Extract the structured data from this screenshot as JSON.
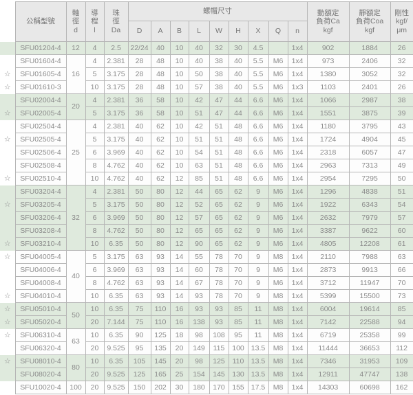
{
  "colors": {
    "header_bg": "#e8e8e8",
    "highlight_row_bg": "#dfeadd",
    "row_bg": "#fdfdfd",
    "border": "#b5b5b5",
    "text": "#8b8b8b"
  },
  "icons": {
    "star": "☆"
  },
  "table": {
    "headers": {
      "model": "公稱型號",
      "shaft_dia": "軸\n徑\nd",
      "lead": "導\n程\nl",
      "ball_dia": "珠\n徑\nDa",
      "nut_group": "螺帽尺寸",
      "nut_cols": [
        "D",
        "A",
        "B",
        "L",
        "W",
        "H",
        "X",
        "Q",
        "n"
      ],
      "dynamic_load": "動額定\n負荷Ca\nkgf",
      "static_load": "靜額定\n負荷Coa\nkgf",
      "rigidity": "剛性\nkgf/\nμm"
    },
    "rows": [
      {
        "star": false,
        "highlight": true,
        "model": "SFU01204-4",
        "d": {
          "value": "12",
          "span": 1
        },
        "cells": [
          "4",
          "2.5",
          "22/24",
          "40",
          "10",
          "40",
          "32",
          "30",
          "4.5",
          "",
          "1x4",
          "902",
          "1884",
          "26"
        ]
      },
      {
        "star": false,
        "highlight": false,
        "model": "SFU01604-4",
        "d": {
          "value": "16",
          "span": 3
        },
        "cells": [
          "4",
          "2.381",
          "28",
          "48",
          "10",
          "40",
          "38",
          "40",
          "5.5",
          "M6",
          "1x4",
          "973",
          "2406",
          "32"
        ]
      },
      {
        "star": true,
        "highlight": false,
        "model": "SFU01605-4",
        "d": null,
        "cells": [
          "5",
          "3.175",
          "28",
          "48",
          "10",
          "50",
          "38",
          "40",
          "5.5",
          "M6",
          "1x4",
          "1380",
          "3052",
          "32"
        ]
      },
      {
        "star": true,
        "highlight": false,
        "model": "SFU01610-3",
        "d": null,
        "cells": [
          "10",
          "3.175",
          "28",
          "48",
          "10",
          "57",
          "38",
          "40",
          "5.5",
          "M6",
          "1x3",
          "1103",
          "2401",
          "26"
        ]
      },
      {
        "star": false,
        "highlight": true,
        "model": "SFU02004-4",
        "d": {
          "value": "20",
          "span": 2
        },
        "cells": [
          "4",
          "2.381",
          "36",
          "58",
          "10",
          "42",
          "47",
          "44",
          "6.6",
          "M6",
          "1x4",
          "1066",
          "2987",
          "38"
        ]
      },
      {
        "star": true,
        "highlight": true,
        "model": "SFU02005-4",
        "d": null,
        "cells": [
          "5",
          "3.175",
          "36",
          "58",
          "10",
          "51",
          "47",
          "44",
          "6.6",
          "M6",
          "1x4",
          "1551",
          "3875",
          "39"
        ]
      },
      {
        "star": false,
        "highlight": false,
        "model": "SFU02504-4",
        "d": {
          "value": "25",
          "span": 5
        },
        "cells": [
          "4",
          "2.381",
          "40",
          "62",
          "10",
          "42",
          "51",
          "48",
          "6.6",
          "M6",
          "1x4",
          "1180",
          "3795",
          "43"
        ]
      },
      {
        "star": true,
        "highlight": false,
        "model": "SFU02505-4",
        "d": null,
        "cells": [
          "5",
          "3.175",
          "40",
          "62",
          "10",
          "51",
          "51",
          "48",
          "6.6",
          "M6",
          "1x4",
          "1724",
          "4904",
          "45"
        ]
      },
      {
        "star": false,
        "highlight": false,
        "model": "SFU02506-4",
        "d": null,
        "cells": [
          "6",
          "3.969",
          "40",
          "62",
          "10",
          "54",
          "51",
          "48",
          "6.6",
          "M6",
          "1x4",
          "2318",
          "6057",
          "47"
        ]
      },
      {
        "star": false,
        "highlight": false,
        "model": "SFU02508-4",
        "d": null,
        "cells": [
          "8",
          "4.762",
          "40",
          "62",
          "10",
          "63",
          "51",
          "48",
          "6.6",
          "M6",
          "1x4",
          "2963",
          "7313",
          "49"
        ]
      },
      {
        "star": true,
        "highlight": false,
        "model": "SFU02510-4",
        "d": null,
        "cells": [
          "10",
          "4.762",
          "40",
          "62",
          "12",
          "85",
          "51",
          "48",
          "6.6",
          "M6",
          "1x4",
          "2954",
          "7295",
          "50"
        ]
      },
      {
        "star": false,
        "highlight": true,
        "model": "SFU03204-4",
        "d": {
          "value": "32",
          "span": 5
        },
        "cells": [
          "4",
          "2.381",
          "50",
          "80",
          "12",
          "44",
          "65",
          "62",
          "9",
          "M6",
          "1x4",
          "1296",
          "4838",
          "51"
        ]
      },
      {
        "star": true,
        "highlight": true,
        "model": "SFU03205-4",
        "d": null,
        "cells": [
          "5",
          "3.175",
          "50",
          "80",
          "12",
          "52",
          "65",
          "62",
          "9",
          "M6",
          "1x4",
          "1922",
          "6343",
          "54"
        ]
      },
      {
        "star": false,
        "highlight": true,
        "model": "SFU03206-4",
        "d": null,
        "cells": [
          "6",
          "3.969",
          "50",
          "80",
          "12",
          "57",
          "65",
          "62",
          "9",
          "M6",
          "1x4",
          "2632",
          "7979",
          "57"
        ]
      },
      {
        "star": false,
        "highlight": true,
        "model": "SFU03208-4",
        "d": null,
        "cells": [
          "8",
          "4.762",
          "50",
          "80",
          "12",
          "65",
          "65",
          "62",
          "9",
          "M6",
          "1x4",
          "3387",
          "9622",
          "60"
        ]
      },
      {
        "star": true,
        "highlight": true,
        "model": "SFU03210-4",
        "d": null,
        "cells": [
          "10",
          "6.35",
          "50",
          "80",
          "12",
          "90",
          "65",
          "62",
          "9",
          "M6",
          "1x4",
          "4805",
          "12208",
          "61"
        ]
      },
      {
        "star": true,
        "highlight": false,
        "model": "SFU04005-4",
        "d": {
          "value": "40",
          "span": 4
        },
        "cells": [
          "5",
          "3.175",
          "63",
          "93",
          "14",
          "55",
          "78",
          "70",
          "9",
          "M8",
          "1x4",
          "2110",
          "7988",
          "63"
        ]
      },
      {
        "star": false,
        "highlight": false,
        "model": "SFU04006-4",
        "d": null,
        "cells": [
          "6",
          "3.969",
          "63",
          "93",
          "14",
          "60",
          "78",
          "70",
          "9",
          "M6",
          "1x4",
          "2873",
          "9913",
          "66"
        ]
      },
      {
        "star": false,
        "highlight": false,
        "model": "SFU04008-4",
        "d": null,
        "cells": [
          "8",
          "4.762",
          "63",
          "93",
          "14",
          "67",
          "78",
          "70",
          "9",
          "M6",
          "1x4",
          "3712",
          "11947",
          "70"
        ]
      },
      {
        "star": true,
        "highlight": false,
        "model": "SFU04010-4",
        "d": null,
        "cells": [
          "10",
          "6.35",
          "63",
          "93",
          "14",
          "93",
          "78",
          "70",
          "9",
          "M8",
          "1x4",
          "5399",
          "15500",
          "73"
        ]
      },
      {
        "star": true,
        "highlight": true,
        "model": "SFU05010-4",
        "d": {
          "value": "50",
          "span": 2
        },
        "cells": [
          "10",
          "6.35",
          "75",
          "110",
          "16",
          "93",
          "93",
          "85",
          "11",
          "M8",
          "1x4",
          "6004",
          "19614",
          "85"
        ]
      },
      {
        "star": true,
        "highlight": true,
        "model": "SFU05020-4",
        "d": null,
        "cells": [
          "20",
          "7.144",
          "75",
          "110",
          "16",
          "138",
          "93",
          "85",
          "11",
          "M8",
          "1x4",
          "7142",
          "22588",
          "94"
        ]
      },
      {
        "star": true,
        "highlight": false,
        "model": "SFU06310-4",
        "d": {
          "value": "63",
          "span": 2
        },
        "cells": [
          "10",
          "6.35",
          "90",
          "125",
          "18",
          "98",
          "108",
          "95",
          "11",
          "M8",
          "1x4",
          "6719",
          "25358",
          "99"
        ]
      },
      {
        "star": false,
        "highlight": false,
        "model": "SFU06320-4",
        "d": null,
        "cells": [
          "20",
          "9.525",
          "95",
          "135",
          "20",
          "149",
          "115",
          "100",
          "13.5",
          "M8",
          "1x4",
          "11444",
          "36653",
          "112"
        ]
      },
      {
        "star": true,
        "highlight": true,
        "model": "SFU08010-4",
        "d": {
          "value": "80",
          "span": 2
        },
        "cells": [
          "10",
          "6.35",
          "105",
          "145",
          "20",
          "98",
          "125",
          "110",
          "13.5",
          "M8",
          "1x4",
          "7346",
          "31953",
          "109"
        ]
      },
      {
        "star": false,
        "highlight": true,
        "model": "SFU08020-4",
        "d": null,
        "cells": [
          "20",
          "9.525",
          "125",
          "165",
          "25",
          "154",
          "145",
          "130",
          "13.5",
          "M8",
          "1x4",
          "12911",
          "47747",
          "138"
        ]
      },
      {
        "star": false,
        "highlight": false,
        "model": "SFU10020-4",
        "d": {
          "value": "100",
          "span": 1
        },
        "cells": [
          "20",
          "9.525",
          "150",
          "202",
          "30",
          "180",
          "170",
          "155",
          "17.5",
          "M8",
          "1x4",
          "14303",
          "60698",
          "162"
        ]
      }
    ]
  }
}
